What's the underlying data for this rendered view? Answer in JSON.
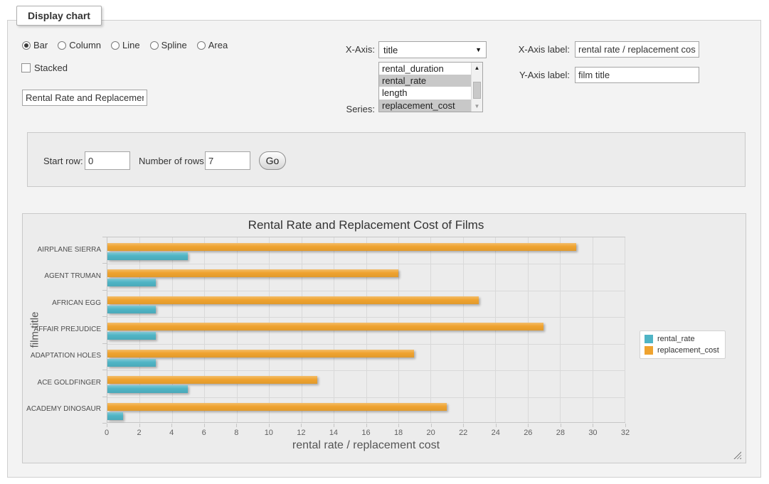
{
  "panel": {
    "legend": "Display chart"
  },
  "chart_type_options": [
    {
      "label": "Bar",
      "selected": true
    },
    {
      "label": "Column",
      "selected": false
    },
    {
      "label": "Line",
      "selected": false
    },
    {
      "label": "Spline",
      "selected": false
    },
    {
      "label": "Area",
      "selected": false
    }
  ],
  "stacked": {
    "label": "Stacked",
    "checked": false
  },
  "title_input": {
    "value": "Rental Rate and Replacement Cost of Films"
  },
  "x_axis": {
    "label": "X-Axis:",
    "value": "title"
  },
  "series_select": {
    "label": "Series:",
    "options": [
      {
        "label": "rental_duration",
        "selected": false
      },
      {
        "label": "rental_rate",
        "selected": true
      },
      {
        "label": "length",
        "selected": false
      },
      {
        "label": "replacement_cost",
        "selected": true
      }
    ]
  },
  "x_axis_label": {
    "label": "X-Axis label:",
    "value": "rental rate / replacement cost"
  },
  "y_axis_label": {
    "label": "Y-Axis label:",
    "value": "film title"
  },
  "row_controls": {
    "start_row_label": "Start row:",
    "start_row_value": "0",
    "num_rows_label": "Number of rows:",
    "num_rows_value": "7",
    "go_label": "Go"
  },
  "chart_data": {
    "type": "bar",
    "title": "Rental Rate and Replacement Cost of Films",
    "xlabel": "rental rate / replacement cost",
    "ylabel": "film title",
    "categories": [
      "AIRPLANE SIERRA",
      "AGENT TRUMAN",
      "AFRICAN EGG",
      "AFFAIR PREJUDICE",
      "ADAPTATION HOLES",
      "ACE GOLDFINGER",
      "ACADEMY DINOSAUR"
    ],
    "series": [
      {
        "name": "rental_rate",
        "color": "#4fb4c5",
        "values": [
          4.99,
          2.99,
          2.99,
          2.99,
          2.99,
          4.99,
          0.99
        ]
      },
      {
        "name": "replacement_cost",
        "color": "#efa32f",
        "values": [
          28.99,
          17.99,
          22.99,
          26.99,
          18.99,
          12.99,
          20.99
        ]
      }
    ],
    "bar_order_top_to_bottom": [
      "replacement_cost",
      "rental_rate"
    ],
    "xlim": [
      0,
      32
    ],
    "xtick_step": 2,
    "grid": true,
    "legend_position": "right"
  }
}
